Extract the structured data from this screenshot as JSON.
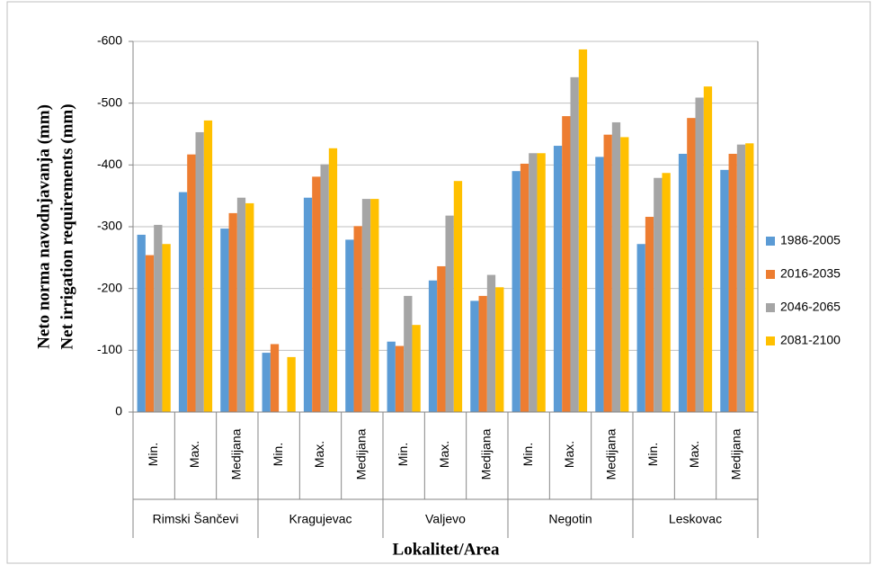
{
  "chart_data": {
    "type": "bar",
    "y_title_lines": [
      "Neto norma navodnjavanja (mm)",
      "Net irrigation requirements (mm)"
    ],
    "x_title": "Lokalitet/Area",
    "categories": [
      "Min.",
      "Max.",
      "Medijana",
      "Min.",
      "Max.",
      "Medijana",
      "Min.",
      "Max.",
      "Medijana",
      "Min.",
      "Max.",
      "Medijana",
      "Min.",
      "Max.",
      "Medijana"
    ],
    "category_groups": [
      "Rimski Šančevi",
      "Kragujevac",
      "Valjevo",
      "Negotin",
      "Leskovac"
    ],
    "series": [
      {
        "name": "1986-2005",
        "color": "#5b9bd5",
        "values": [
          287,
          356,
          297,
          96,
          347,
          279,
          114,
          213,
          180,
          390,
          431,
          413,
          272,
          418,
          392
        ]
      },
      {
        "name": "2016-2035",
        "color": "#ed7d31",
        "values": [
          254,
          417,
          322,
          110,
          381,
          301,
          107,
          236,
          188,
          402,
          479,
          449,
          316,
          476,
          418
        ]
      },
      {
        "name": "2046-2065",
        "color": "#a5a5a5",
        "values": [
          303,
          453,
          347,
          null,
          401,
          345,
          188,
          318,
          222,
          419,
          542,
          469,
          379,
          509,
          433
        ]
      },
      {
        "name": "2081-2100",
        "color": "#ffc000",
        "values": [
          272,
          472,
          338,
          89,
          427,
          345,
          141,
          374,
          202,
          419,
          587,
          445,
          387,
          527,
          435
        ]
      }
    ],
    "ylim": [
      0,
      600
    ],
    "yticks": [
      0,
      {
        "value": 100,
        "label": "-100"
      },
      {
        "value": 200,
        "label": "-200"
      },
      {
        "value": 300,
        "label": "-300"
      },
      {
        "value": 400,
        "label": "-400"
      },
      {
        "value": 500,
        "label": "-500"
      },
      {
        "value": 600,
        "label": "-600"
      }
    ],
    "grid": true,
    "legend": "right"
  }
}
